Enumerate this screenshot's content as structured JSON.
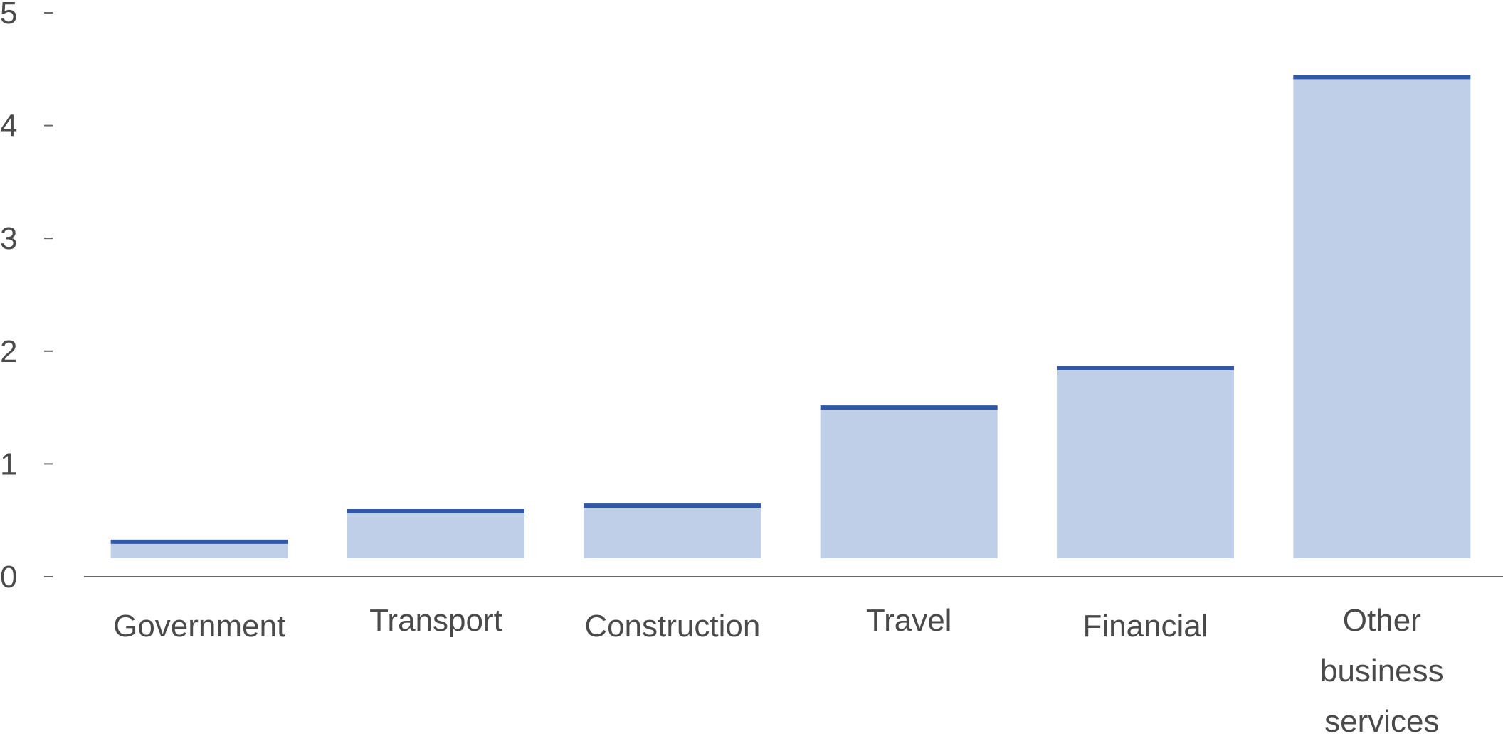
{
  "chart_data": {
    "type": "bar",
    "title": "",
    "xlabel": "",
    "ylabel": "",
    "categories": [
      "Government",
      "Transport",
      "Construction",
      "Travel",
      "Financial",
      "Other business services"
    ],
    "category_lines": [
      [
        "Government"
      ],
      [
        "Transport"
      ],
      [
        "Construction"
      ],
      [
        "Travel"
      ],
      [
        "Financial"
      ],
      [
        "Other",
        "business",
        "services"
      ]
    ],
    "values": [
      0.31,
      0.58,
      0.63,
      1.5,
      1.85,
      4.43
    ],
    "ylim": [
      0,
      5
    ],
    "yticks": [
      "0",
      "1",
      "2",
      "3",
      "4",
      "5"
    ],
    "grid": false,
    "colors": {
      "bar_fill": "#c0cfe8",
      "bar_cap": "#2f59a8",
      "axis": "#6a6a6a",
      "text": "#4a4a4a"
    }
  }
}
